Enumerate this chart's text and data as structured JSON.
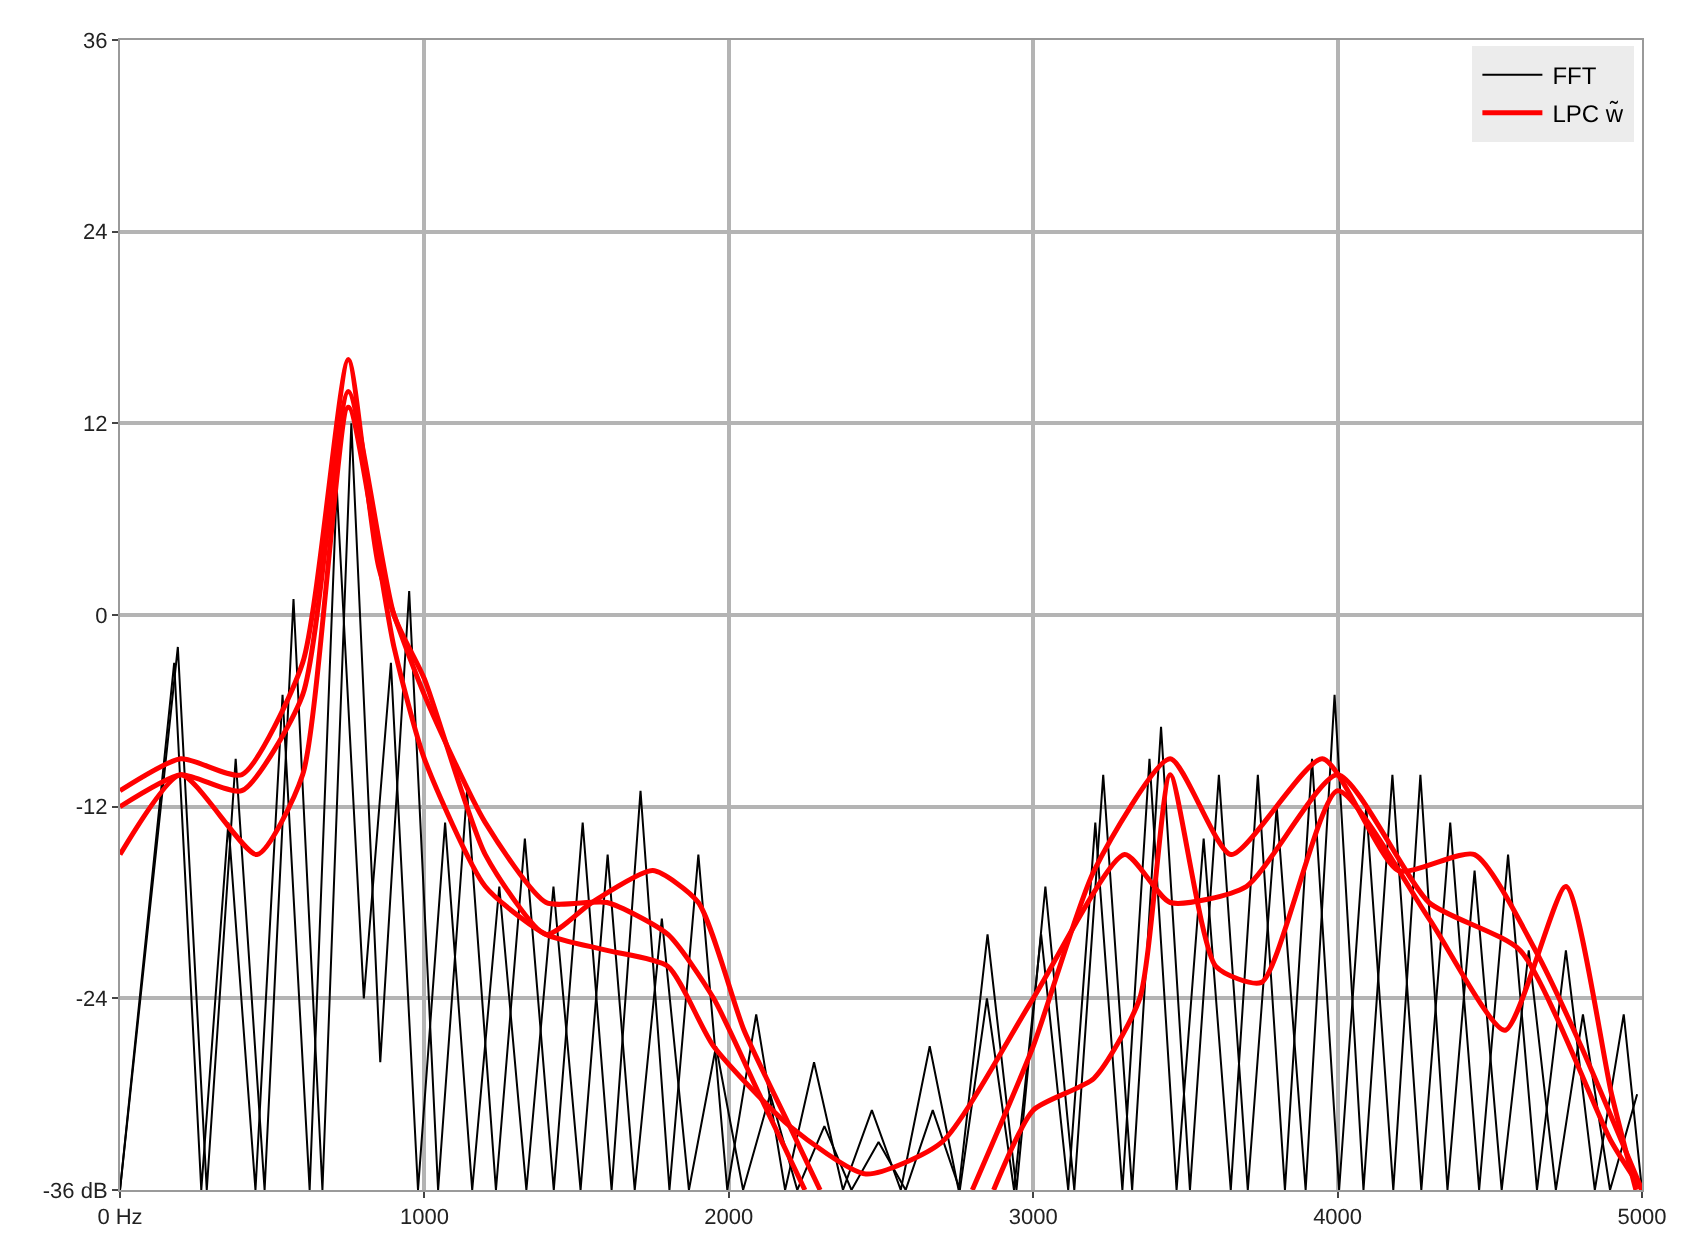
{
  "chart_data": {
    "type": "line",
    "xlim": [
      0,
      5000
    ],
    "ylim": [
      -36,
      36
    ],
    "xticks": [
      {
        "value": 0,
        "label": "0 Hz"
      },
      1000,
      2000,
      3000,
      4000,
      5000
    ],
    "yticks": [
      {
        "value": -36,
        "label": "-36 dB"
      },
      -24,
      -12,
      0,
      12,
      24,
      36
    ],
    "grid": true,
    "legend": "top right",
    "marker": "none",
    "line_style": "solid",
    "series": [
      {
        "name": "FFT",
        "color": "#000000",
        "x": [
          0,
          190,
          285,
          380,
          475,
          570,
          665,
          760,
          855,
          950,
          1045,
          1140,
          1235,
          1330,
          1425,
          1520,
          1615,
          1710,
          1805,
          1900,
          1995,
          2090,
          2185,
          2280,
          2375,
          2470,
          2565,
          2660,
          2755,
          2850,
          2945,
          3040,
          3135,
          3230,
          3325,
          3420,
          3515,
          3610,
          3705,
          3800,
          3895,
          3990,
          4085,
          4180,
          4275,
          4370,
          4465,
          4560,
          4655,
          4750,
          4845,
          4940,
          5000
        ],
        "values": [
          -36,
          -2,
          -36,
          -9,
          -36,
          1,
          -36,
          12,
          -28,
          1.5,
          -36,
          -11,
          -36,
          -14,
          -36,
          -13,
          -36,
          -11,
          -36,
          -15,
          -36,
          -25,
          -36,
          -28,
          -36,
          -31,
          -36,
          -27,
          -36,
          -20,
          -36,
          -17,
          -36,
          -10,
          -36,
          -7,
          -36,
          -10,
          -36,
          -12,
          -36,
          -5,
          -36,
          -10,
          -36,
          -13,
          -36,
          -15,
          -36,
          -21,
          -36,
          -25,
          -36
        ]
      },
      {
        "color": "#000000",
        "x": [
          0,
          178,
          267,
          356,
          445,
          534,
          623,
          712,
          801,
          890,
          979,
          1068,
          1157,
          1246,
          1335,
          1424,
          1513,
          1602,
          1691,
          1780,
          1869,
          1958,
          2047,
          2136,
          2225,
          2314,
          2403,
          2492,
          2581,
          2670,
          2759,
          2848,
          2937,
          3026,
          3115,
          3204,
          3293,
          3382,
          3471,
          3560,
          3649,
          3738,
          3827,
          3916,
          4005,
          4094,
          4183,
          4272,
          4361,
          4450,
          4539,
          4628,
          4717,
          4806,
          4895,
          4984
        ],
        "values": [
          -36,
          -3,
          -36,
          -13,
          -36,
          -5,
          -36,
          8,
          -24,
          -3,
          -36,
          -13,
          -36,
          -17,
          -36,
          -17,
          -36,
          -15,
          -36,
          -19,
          -36,
          -27,
          -36,
          -30,
          -36,
          -32,
          -36,
          -33,
          -36,
          -31,
          -36,
          -24,
          -36,
          -20,
          -36,
          -13,
          -36,
          -9,
          -36,
          -14,
          -36,
          -10,
          -36,
          -9,
          -36,
          -12,
          -36,
          -10,
          -36,
          -16,
          -36,
          -21,
          -36,
          -25,
          -36,
          -30
        ]
      },
      {
        "name": "LPC w̃",
        "color": "#ff0000",
        "x": [
          0,
          200,
          400,
          600,
          750,
          850,
          1000,
          1200,
          1400,
          1600,
          1800,
          1950,
          2100,
          2250,
          2500,
          2800,
          3000,
          3200,
          3450,
          3650,
          3950,
          4200,
          4450,
          4650,
          4800,
          5000
        ],
        "values": [
          -11,
          -9,
          -10,
          -3,
          16,
          3,
          -5,
          -13,
          -18,
          -18,
          -20,
          -24,
          -30,
          -36,
          null,
          -36,
          -27,
          -16,
          -9,
          -15,
          -9,
          -16,
          -15,
          -21,
          -27,
          -36
        ]
      },
      {
        "color": "#ff0000",
        "x": [
          0,
          200,
          400,
          600,
          750,
          900,
          1000,
          1200,
          1400,
          1550,
          1750,
          1900,
          2050,
          2200,
          2300,
          2500,
          2870,
          3000,
          3200,
          3350,
          3450,
          3600,
          3750,
          4000,
          4300,
          4550,
          4750,
          4900,
          4980
        ],
        "values": [
          -12,
          -10,
          -11,
          -5,
          14,
          0,
          -4,
          -15,
          -20,
          -18,
          -16,
          -18,
          -26,
          -32,
          -36,
          null,
          -36,
          -31,
          -29,
          -24,
          -10,
          -22,
          -23,
          -11,
          -19,
          -26,
          -17,
          -30,
          -36
        ]
      },
      {
        "color": "#ff0000",
        "x": [
          0,
          200,
          450,
          600,
          750,
          900,
          1000,
          1200,
          1400,
          1600,
          1800,
          1950,
          2200,
          2450,
          2700,
          3000,
          3300,
          3450,
          3700,
          4000,
          4300,
          4600,
          4900,
          5000
        ],
        "values": [
          -15,
          -10,
          -15,
          -10,
          13,
          -2,
          -9,
          -17,
          -20,
          -21,
          -22,
          -27,
          -32,
          -35,
          -33,
          -24,
          -15,
          -18,
          -17,
          -10,
          -18,
          -21,
          -33,
          -36
        ]
      }
    ]
  }
}
